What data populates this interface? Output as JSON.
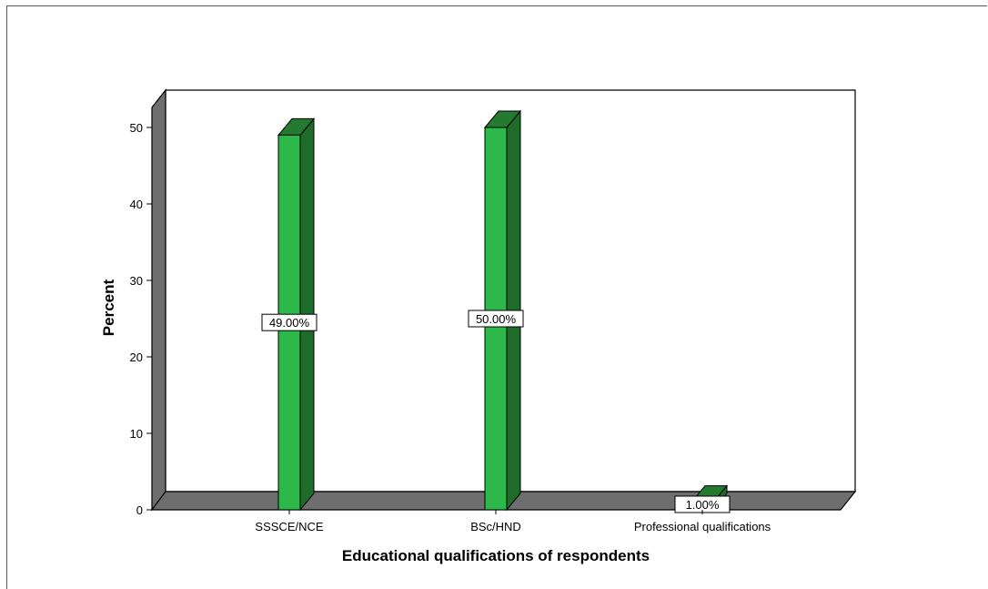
{
  "chart_data": {
    "type": "bar",
    "categories": [
      "SSSCE/NCE",
      "BSc/HND",
      "Professional qualifications"
    ],
    "values": [
      49.0,
      50.0,
      1.0
    ],
    "data_labels": [
      "49.00%",
      "50.00%",
      "1.00%"
    ],
    "title": "",
    "xlabel": "Educational qualifications of respondents",
    "ylabel": "Percent",
    "ylim": [
      0,
      50
    ],
    "yticks": [
      "0",
      "10",
      "20",
      "30",
      "40",
      "50"
    ],
    "grid": false,
    "legend": "none",
    "style": "3d",
    "colors": {
      "bar_front": "#2db84a",
      "bar_side": "#1e6b2a",
      "bar_top": "#247a30",
      "floor": "#6e6e6e",
      "wall": "#ffffff",
      "outline": "#000000"
    }
  }
}
